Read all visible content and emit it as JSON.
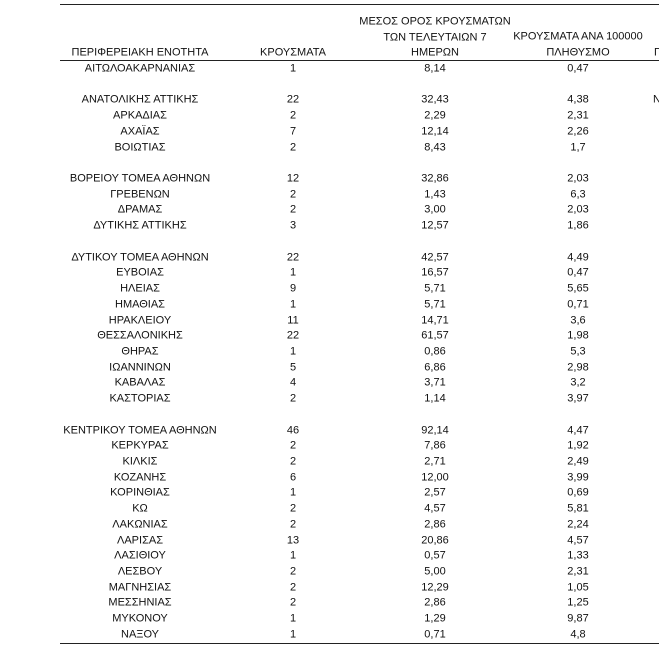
{
  "header": {
    "region": "ΠΕΡΙΦΕΡΕΙΑΚΗ ΕΝΟΤΗΤΑ",
    "cases": "ΚΡΟΥΣΜΑΤΑ",
    "avg": [
      "ΜΕΣΟΣ ΟΡΟΣ ΚΡΟΥΣΜΑΤΩΝ",
      "ΤΩΝ ΤΕΛΕΥΤΑΙΩΝ 7",
      "ΗΜΕΡΩΝ"
    ],
    "per100k": [
      "ΚΡΟΥΣΜΑΤΑ ΑΝΑ 100000",
      "ΠΛΗΘΥΣΜΟ"
    ],
    "clipped": "Γ"
  },
  "table": {
    "groups": [
      [
        [
          "ΑΙΤΩΛΟΑΚΑΡΝΑΝΙΑΣ",
          "1",
          "8,14",
          "0,47"
        ]
      ],
      [
        [
          "ΑΝΑΤΟΛΙΚΗΣ ΑΤΤΙΚΗΣ",
          "22",
          "32,43",
          "4,38"
        ],
        [
          "ΑΡΚΑΔΙΑΣ",
          "2",
          "2,29",
          "2,31"
        ],
        [
          "ΑΧΑΪΑΣ",
          "7",
          "12,14",
          "2,26"
        ],
        [
          "ΒΟΙΩΤΙΑΣ",
          "2",
          "8,43",
          "1,7"
        ]
      ],
      [
        [
          "ΒΟΡΕΙΟΥ ΤΟΜΕΑ ΑΘΗΝΩΝ",
          "12",
          "32,86",
          "2,03"
        ],
        [
          "ΓΡΕΒΕΝΩΝ",
          "2",
          "1,43",
          "6,3"
        ],
        [
          "ΔΡΑΜΑΣ",
          "2",
          "3,00",
          "2,03"
        ],
        [
          "ΔΥΤΙΚΗΣ ΑΤΤΙΚΗΣ",
          "3",
          "12,57",
          "1,86"
        ]
      ],
      [
        [
          "ΔΥΤΙΚΟΥ ΤΟΜΕΑ ΑΘΗΝΩΝ",
          "22",
          "42,57",
          "4,49"
        ],
        [
          "ΕΥΒΟΙΑΣ",
          "1",
          "16,57",
          "0,47"
        ],
        [
          "ΗΛΕΙΑΣ",
          "9",
          "5,71",
          "5,65"
        ],
        [
          "ΗΜΑΘΙΑΣ",
          "1",
          "5,71",
          "0,71"
        ],
        [
          "ΗΡΑΚΛΕΙΟΥ",
          "11",
          "14,71",
          "3,6"
        ],
        [
          "ΘΕΣΣΑΛΟΝΙΚΗΣ",
          "22",
          "61,57",
          "1,98"
        ],
        [
          "ΘΗΡΑΣ",
          "1",
          "0,86",
          "5,3"
        ],
        [
          "ΙΩΑΝΝΙΝΩΝ",
          "5",
          "6,86",
          "2,98"
        ],
        [
          "ΚΑΒΑΛΑΣ",
          "4",
          "3,71",
          "3,2"
        ],
        [
          "ΚΑΣΤΟΡΙΑΣ",
          "2",
          "1,14",
          "3,97"
        ]
      ],
      [
        [
          "ΚΕΝΤΡΙΚΟΥ ΤΟΜΕΑ ΑΘΗΝΩΝ",
          "46",
          "92,14",
          "4,47"
        ],
        [
          "ΚΕΡΚΥΡΑΣ",
          "2",
          "7,86",
          "1,92"
        ],
        [
          "ΚΙΛΚΙΣ",
          "2",
          "2,71",
          "2,49"
        ],
        [
          "ΚΟΖΑΝΗΣ",
          "6",
          "12,00",
          "3,99"
        ],
        [
          "ΚΟΡΙΝΘΙΑΣ",
          "1",
          "2,57",
          "0,69"
        ],
        [
          "ΚΩ",
          "2",
          "4,57",
          "5,81"
        ],
        [
          "ΛΑΚΩΝΙΑΣ",
          "2",
          "2,86",
          "2,24"
        ],
        [
          "ΛΑΡΙΣΑΣ",
          "13",
          "20,86",
          "4,57"
        ],
        [
          "ΛΑΣΙΘΙΟΥ",
          "1",
          "0,57",
          "1,33"
        ],
        [
          "ΛΕΣΒΟΥ",
          "2",
          "5,00",
          "2,31"
        ],
        [
          "ΜΑΓΝΗΣΙΑΣ",
          "2",
          "12,29",
          "1,05"
        ],
        [
          "ΜΕΣΣΗΝΙΑΣ",
          "2",
          "2,86",
          "1,25"
        ],
        [
          "ΜΥΚΟΝΟΥ",
          "1",
          "1,29",
          "9,87"
        ],
        [
          "ΝΑΞΟΥ",
          "1",
          "0,71",
          "4,8"
        ]
      ]
    ],
    "clipped": "Ν"
  }
}
